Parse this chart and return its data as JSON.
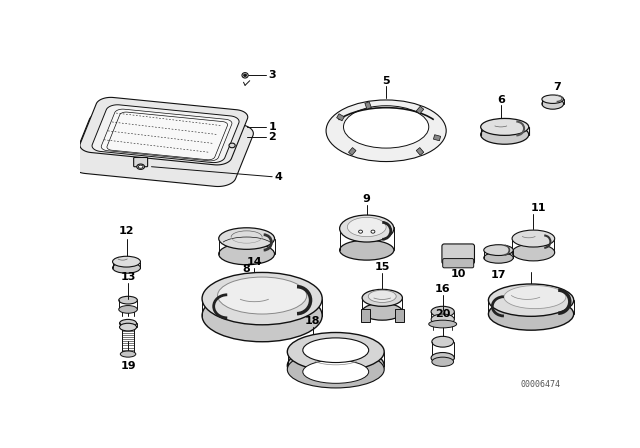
{
  "bg_color": "#ffffff",
  "line_color": "#111111",
  "part_number_label": "00006474",
  "lw": 0.7,
  "gray_fill": "#d8d8d8",
  "white_fill": "#ffffff",
  "light_fill": "#eeeeee"
}
